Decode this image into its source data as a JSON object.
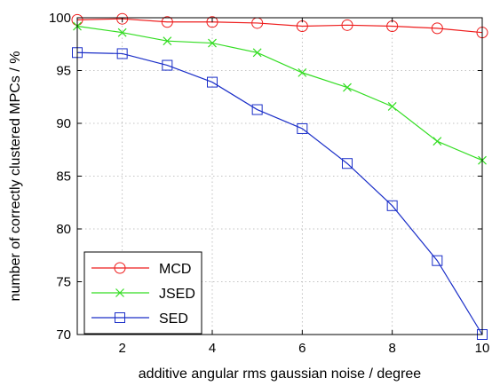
{
  "chart_data": {
    "type": "line",
    "xlabel": "additive angular rms gaussian noise / degree",
    "ylabel": "number of correctly clustered MPCs / %",
    "xlim": [
      1,
      10
    ],
    "ylim": [
      70,
      100
    ],
    "x_ticks": [
      2,
      4,
      6,
      8,
      10
    ],
    "y_ticks": [
      70,
      75,
      80,
      85,
      90,
      95,
      100
    ],
    "grid": true,
    "legend_position": "bottom-left",
    "x": [
      1,
      2,
      3,
      4,
      5,
      6,
      7,
      8,
      9,
      10
    ],
    "series": [
      {
        "name": "MCD",
        "color": "#ee1c1c",
        "marker": "circle",
        "values": [
          99.8,
          99.9,
          99.6,
          99.6,
          99.5,
          99.2,
          99.3,
          99.2,
          99.0,
          98.6
        ]
      },
      {
        "name": "JSED",
        "color": "#33dd22",
        "marker": "x",
        "values": [
          99.2,
          98.6,
          97.8,
          97.6,
          96.7,
          94.8,
          93.4,
          91.6,
          88.3,
          86.5
        ]
      },
      {
        "name": "SED",
        "color": "#1a2ec8",
        "marker": "square",
        "values": [
          96.7,
          96.6,
          95.5,
          93.9,
          91.3,
          89.5,
          86.2,
          82.2,
          77.0,
          70.0
        ]
      }
    ]
  }
}
